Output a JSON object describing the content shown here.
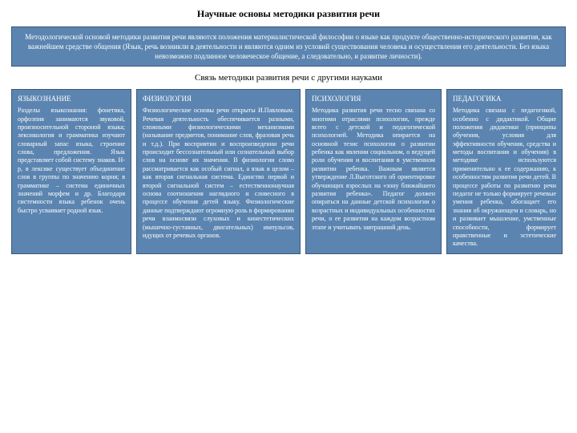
{
  "title": "Научные основы методики развития речи",
  "intro": "Методологической основой методики развития речи являются положения материалистической философии о языке как продукте общественно-исторического развития, как важнейшем средстве общения (Язык, речь возникли в деятельности и являются одним из условий существования человека и осуществления его деятельности. Без языка невозможно подлинное человеческое общение, а следовательно, и развитие личности).",
  "subtitle": "Связь методики развития речи с другими науками",
  "columns": [
    {
      "heading": "ЯЗЫКОЗНАНИЕ",
      "body": "Разделы языкознания: фонетика, орфоэпия занимаются звуковой, произносительной стороной языка; лексикология и грамматика изучают словарный запас языка, строение слова, предложения. Язык представляет собой систему знаков. Н-р, в лексике существует объединение слов в группы по значению корня; в грамматике – система единичных значений морфем и др. Благодаря системности языка ребенок очень быстро усваивает родной язык."
    },
    {
      "heading": "ФИЗИОЛОГИЯ",
      "body": "Физиологические основы речи открыты И.Павловым. Речевая деятельность обеспечивается разными, сложными физиологическими механизмами (называние предметов, понимание слов, фразовая речь и т.д.). При восприятии и воспроизведении речи происходит бессознательный или сознательный выбор слов на основе их значения. В физиологии слово рассматривается как особый сигнал, а язык в целом – как вторая сигнальная система. Единство первой и второй сигнальной систем – естественнонаучная основа соотношения наглядного и словесного в процессе обучения детей языку. Физиологические данные подтверждают огромную роль в формировании речи взаимосвязи слуховых и кинестетических (мышечно-суставных, двигательных) импульсов, идущих от речевых органов."
    },
    {
      "heading": "ПСИХОЛОГИЯ",
      "body": "Методика развития речи тесно связана со многими отраслями психологии, прежде всего с детской и педагогической психологией. Методика опирается на основной тезис психологии о развитии ребенка как явлении социальном, о ведущей роли обучения и воспитания в умственном развитии ребенка. Важным является утверждение Л.Выготского об ориентировке обучающих взрослых на «зону ближайшего развития ребенка». Педагог должен опираться на данные детской психологии о возрастных и индивидуальных особенностях речи, о ее развитии на каждом возрастном этапе и учитывать завтрашний день."
    },
    {
      "heading": "ПЕДАГОГИКА",
      "body": "Методика связана с педагогикой, особенно с дидактикой. Общие положения дидактики (принципы обучения, условия для эффективности обучения, средства и методы воспитания и обучения) в методике используются применительно к ее содержанию, к особенностям развития речи детей. В процессе работы по развитию речи педагог не только формирует речевые умения ребенка, обогащает его знания об окружающем и словарь, но и развивает мышление, умственные способности, формирует нравственные и эстетические качества."
    }
  ]
}
